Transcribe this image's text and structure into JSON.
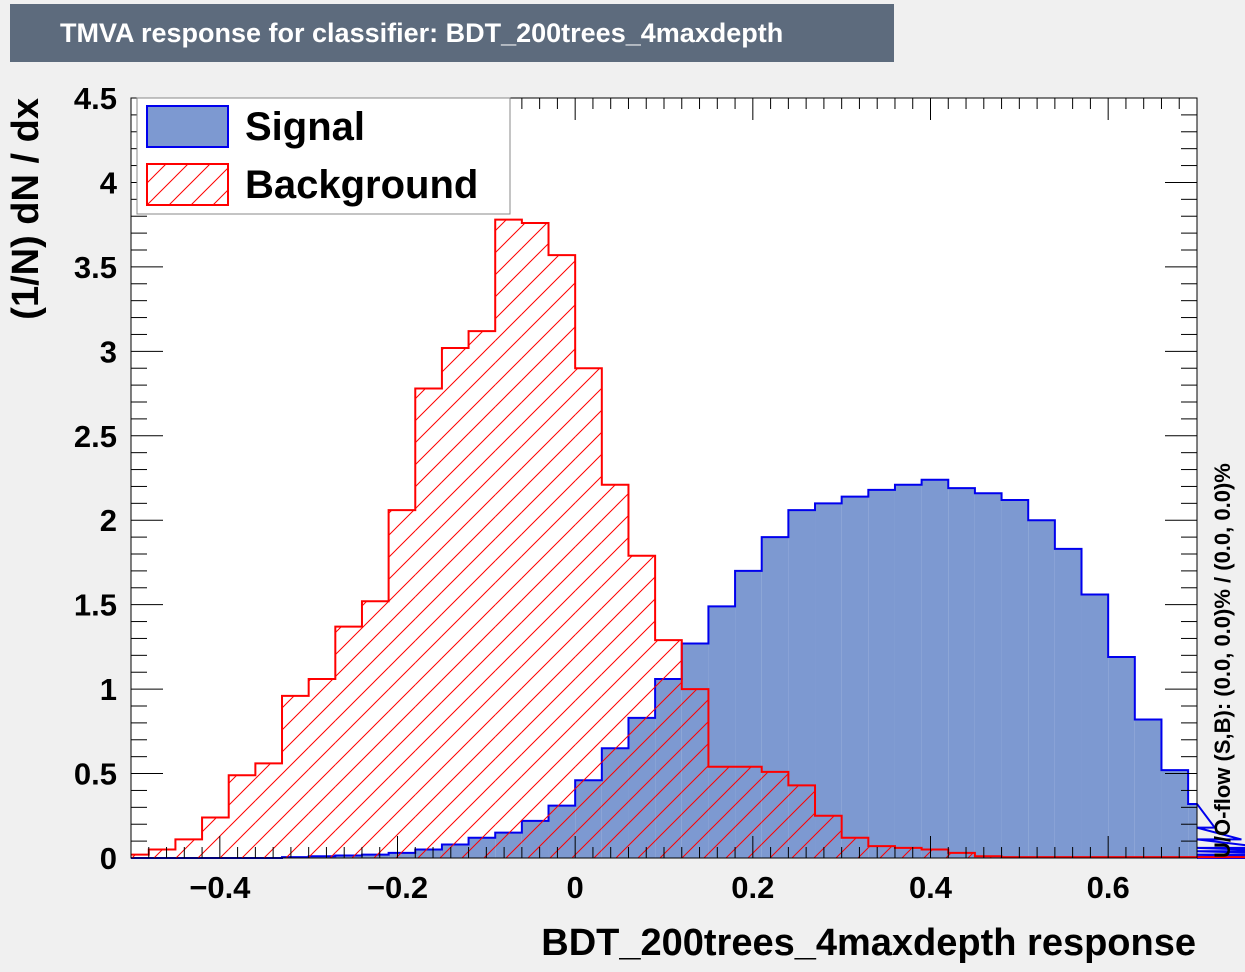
{
  "chart_data": {
    "type": "histogram",
    "title": "TMVA response for classifier: BDT_200trees_4maxdepth",
    "xlabel": "BDT_200trees_4maxdepth response",
    "ylabel": "(1/N) dN / dx",
    "xlim": [
      -0.5,
      0.7
    ],
    "ylim": [
      0,
      4.5
    ],
    "bin_width": 0.03,
    "x_ticks": [
      -0.4,
      -0.2,
      0,
      0.2,
      0.4,
      0.6
    ],
    "x_tick_labels": [
      "−0.4",
      "−0.2",
      "0",
      "0.2",
      "0.4",
      "0.6"
    ],
    "y_ticks": [
      0,
      0.5,
      1,
      1.5,
      2,
      2.5,
      3,
      3.5,
      4,
      4.5
    ],
    "y_tick_labels": [
      "0",
      "0.5",
      "1",
      "1.5",
      "2",
      "2.5",
      "3",
      "3.5",
      "4",
      "4.5"
    ],
    "overflow_label": "U/O-flow (S,B): (0.0, 0.0)% / (0.0, 0.0)%",
    "legend": {
      "position": "top-left",
      "entries": [
        "Signal",
        "Background"
      ]
    },
    "series": [
      {
        "name": "Signal",
        "fill": "#7d99d1",
        "line": "#0000ee",
        "values": [
          0,
          0,
          0,
          0,
          0,
          0,
          0.005,
          0.01,
          0.015,
          0.02,
          0.03,
          0.05,
          0.08,
          0.12,
          0.15,
          0.22,
          0.31,
          0.46,
          0.65,
          0.83,
          1.06,
          1.27,
          1.49,
          1.7,
          1.9,
          2.06,
          2.1,
          2.14,
          2.18,
          2.21,
          2.24,
          2.19,
          2.16,
          2.12,
          2.0,
          1.83,
          1.56,
          1.19,
          0.82,
          0.52,
          0.32,
          0.18,
          0.11,
          0.06,
          0.04,
          0.02,
          0.01,
          0.01,
          0.005,
          0,
          0,
          0,
          0,
          0
        ]
      },
      {
        "name": "Background",
        "fill": "none",
        "line": "#ff0000",
        "hatch": "#ff0000",
        "values": [
          0.02,
          0.05,
          0.11,
          0.24,
          0.49,
          0.56,
          0.96,
          1.06,
          1.37,
          1.52,
          2.06,
          2.78,
          3.02,
          3.12,
          3.78,
          3.76,
          3.57,
          2.9,
          2.21,
          1.79,
          1.29,
          1.0,
          0.54,
          0.54,
          0.51,
          0.43,
          0.25,
          0.12,
          0.07,
          0.06,
          0.05,
          0.03,
          0.01,
          0.005,
          0.005,
          0.005,
          0.005,
          0.005,
          0.005,
          0.005,
          0.005,
          0.005,
          0.005,
          0.005,
          0.005,
          0.005,
          0.005,
          0.005,
          0.005,
          0.005,
          0.005,
          0.005,
          0.005,
          0.005
        ]
      }
    ]
  }
}
